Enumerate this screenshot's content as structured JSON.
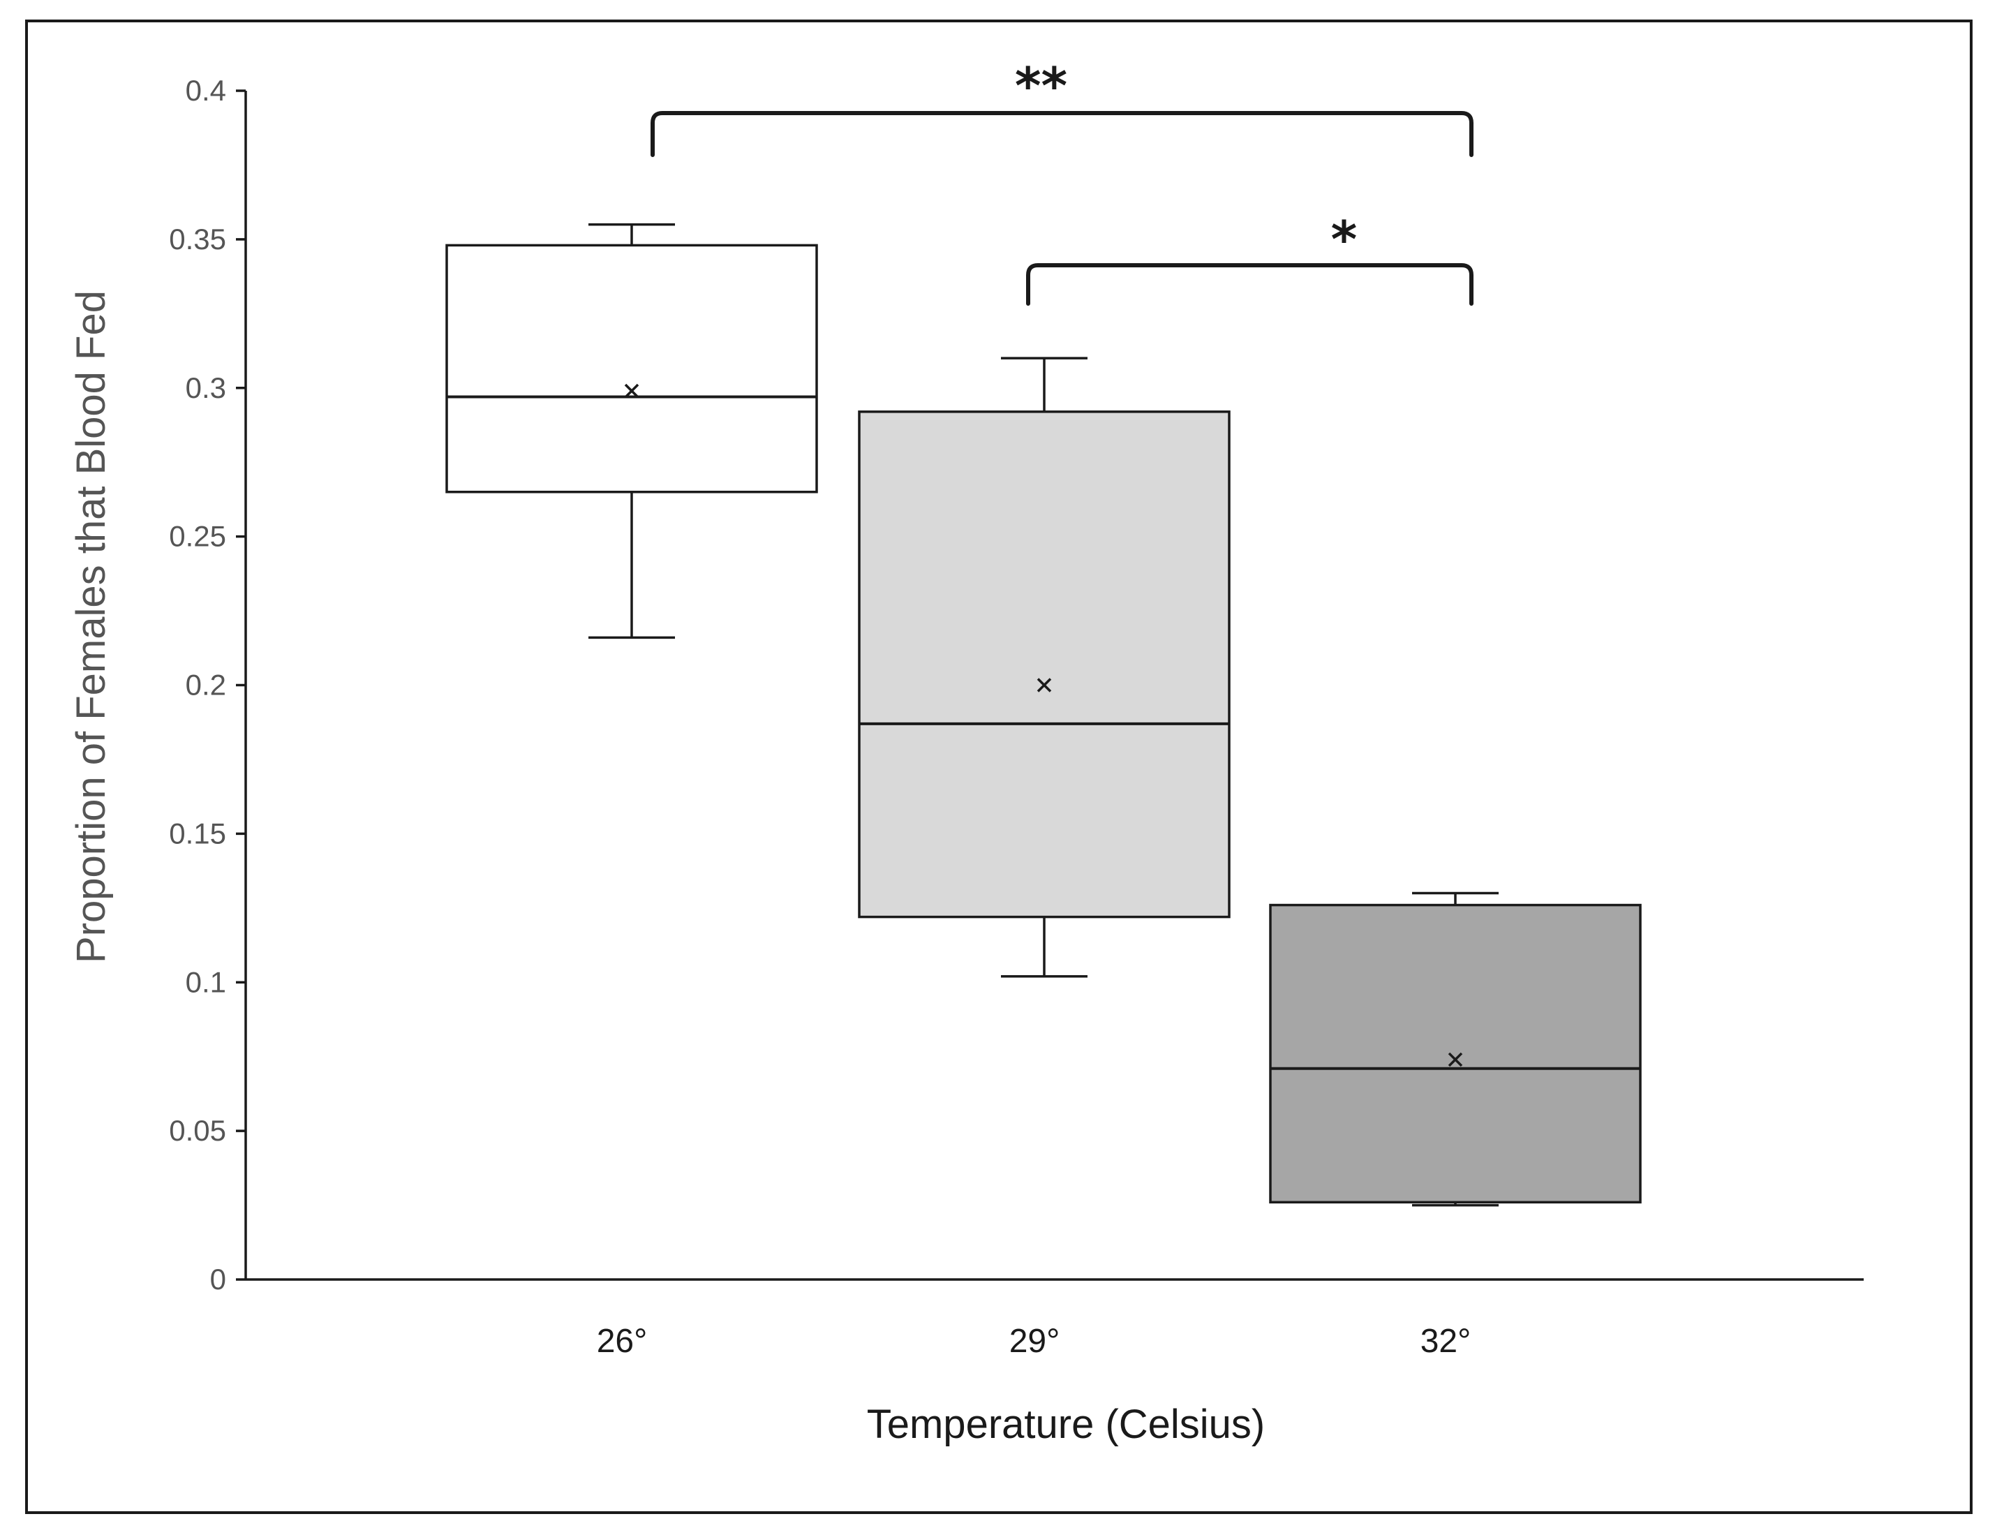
{
  "chart_data": {
    "type": "box",
    "xlabel": "Temperature (Celsius)",
    "ylabel": "Proportion of Females that Blood Fed",
    "ylim": [
      0,
      0.4
    ],
    "yticks": [
      0,
      0.05,
      0.1,
      0.15,
      0.2,
      0.25,
      0.3,
      0.35,
      0.4
    ],
    "ytick_labels": [
      "0",
      "0.05",
      "0.1",
      "0.15",
      "0.2",
      "0.25",
      "0.3",
      "0.35",
      "0.4"
    ],
    "grid": false,
    "categories": [
      "26°",
      "29°",
      "32°"
    ],
    "boxes": [
      {
        "category": "26°",
        "min": 0.216,
        "q1": 0.265,
        "median": 0.297,
        "q3": 0.348,
        "max": 0.355,
        "mean": 0.299,
        "color": "#ffffff"
      },
      {
        "category": "29°",
        "min": 0.102,
        "q1": 0.122,
        "median": 0.187,
        "q3": 0.292,
        "max": 0.31,
        "mean": 0.2,
        "color": "#d9d9d9"
      },
      {
        "category": "32°",
        "min": 0.025,
        "q1": 0.026,
        "median": 0.071,
        "q3": 0.126,
        "max": 0.13,
        "mean": 0.074,
        "color": "#a6a6a6"
      }
    ],
    "significance": [
      {
        "from": "26°",
        "to": "32°",
        "label": "**"
      },
      {
        "from": "29°",
        "to": "32°",
        "label": "*"
      }
    ]
  }
}
